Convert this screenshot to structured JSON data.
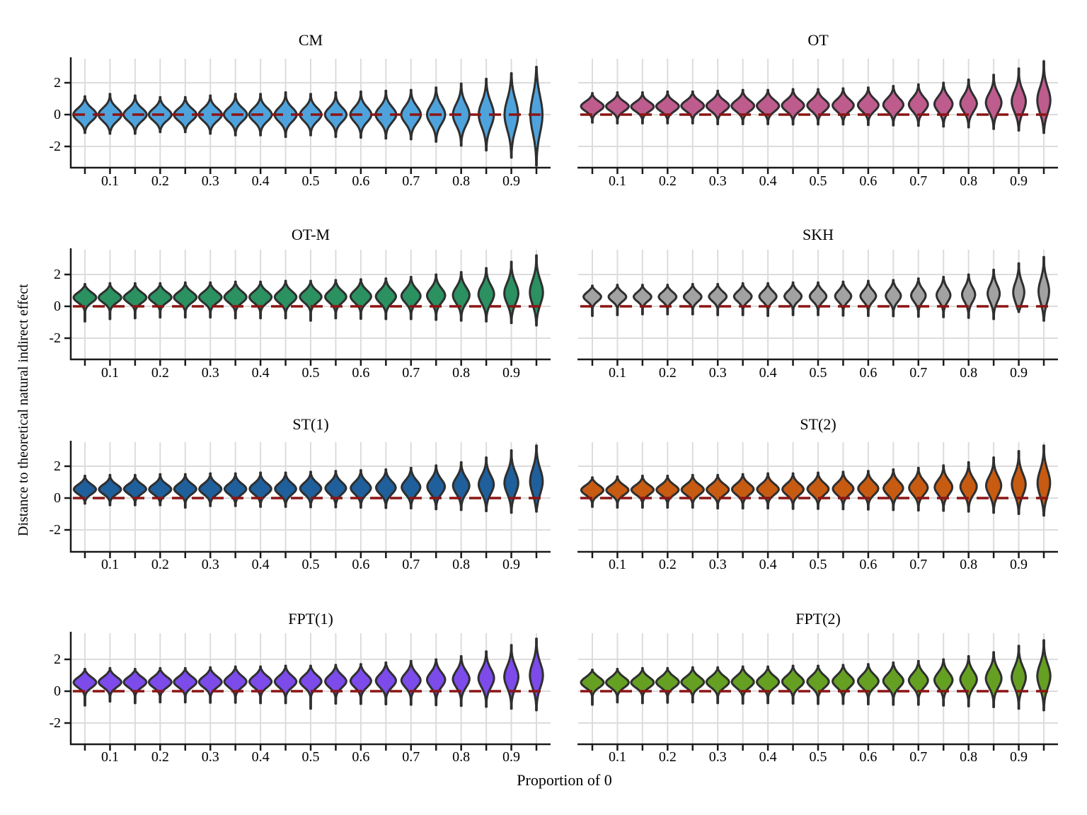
{
  "chart_data": {
    "type": "violin",
    "layout": "4x2 grid of violin-plot panels",
    "xlabel": "Proportion of 0",
    "ylabel": "Distance to theoretical natural indirect effect",
    "proportions": [
      0.05,
      0.1,
      0.15,
      0.2,
      0.25,
      0.3,
      0.35,
      0.4,
      0.45,
      0.5,
      0.55,
      0.6,
      0.65,
      0.7,
      0.75,
      0.8,
      0.85,
      0.9,
      0.95
    ],
    "x_tick_labels": [
      "0.1",
      "0.2",
      "0.3",
      "0.4",
      "0.5",
      "0.6",
      "0.7",
      "0.8",
      "0.9"
    ],
    "y_ticks": [
      2,
      0,
      -2
    ],
    "y_tick_labels": [
      "2",
      "0",
      "-2"
    ],
    "ylim": [
      -3.4,
      3.55
    ],
    "grid": true,
    "zero_line": {
      "y": 0,
      "style": "dashed",
      "color": "#8B1515"
    },
    "outline_color": "#2F2F2F",
    "gridline_color": "#DCDCDC",
    "axis_color": "#1A1A1A",
    "panels": [
      {
        "title": "CM",
        "color": "#4FA3DC",
        "col": 0,
        "row": 0,
        "violins": {
          "centers": [
            0,
            0,
            0,
            0,
            0,
            0,
            0,
            0,
            0,
            0,
            0,
            0,
            0,
            0,
            0,
            0,
            0,
            0,
            0
          ],
          "sds": [
            0.4,
            0.42,
            0.4,
            0.38,
            0.38,
            0.4,
            0.42,
            0.42,
            0.44,
            0.42,
            0.44,
            0.46,
            0.48,
            0.52,
            0.58,
            0.66,
            0.78,
            0.95,
            1.15
          ],
          "lows": [
            -1.15,
            -1.2,
            -1.2,
            -1.1,
            -1.1,
            -1.2,
            -1.3,
            -1.3,
            -1.4,
            -1.3,
            -1.4,
            -1.45,
            -1.5,
            -1.55,
            -1.7,
            -1.95,
            -2.25,
            -2.7,
            -3.2
          ],
          "highs": [
            1.15,
            1.3,
            1.2,
            1.1,
            1.1,
            1.2,
            1.3,
            1.3,
            1.4,
            1.3,
            1.4,
            1.45,
            1.5,
            1.55,
            1.7,
            1.95,
            2.25,
            2.6,
            3.0
          ],
          "widths": [
            0.92,
            0.92,
            0.92,
            0.9,
            0.9,
            0.92,
            0.92,
            0.9,
            0.88,
            0.86,
            0.86,
            0.84,
            0.82,
            0.78,
            0.72,
            0.66,
            0.6,
            0.54,
            0.48
          ]
        }
      },
      {
        "title": "OT",
        "color": "#BE5C8E",
        "col": 1,
        "row": 0,
        "violins": {
          "centers": [
            0.52,
            0.52,
            0.5,
            0.52,
            0.55,
            0.55,
            0.55,
            0.55,
            0.57,
            0.58,
            0.58,
            0.6,
            0.62,
            0.64,
            0.66,
            0.7,
            0.75,
            0.82,
            0.9
          ],
          "sds": [
            0.3,
            0.3,
            0.3,
            0.31,
            0.32,
            0.33,
            0.34,
            0.35,
            0.35,
            0.36,
            0.37,
            0.38,
            0.4,
            0.43,
            0.46,
            0.5,
            0.57,
            0.66,
            0.78
          ],
          "lows": [
            -0.5,
            -0.55,
            -0.55,
            -0.55,
            -0.55,
            -0.6,
            -0.6,
            -0.6,
            -0.62,
            -0.62,
            -0.62,
            -0.65,
            -0.68,
            -0.7,
            -0.75,
            -0.8,
            -0.9,
            -1.0,
            -1.15
          ],
          "highs": [
            1.35,
            1.4,
            1.4,
            1.45,
            1.45,
            1.5,
            1.55,
            1.55,
            1.6,
            1.6,
            1.65,
            1.7,
            1.8,
            1.9,
            2.0,
            2.2,
            2.5,
            2.9,
            3.35
          ],
          "widths": [
            0.9,
            0.9,
            0.9,
            0.9,
            0.9,
            0.9,
            0.9,
            0.88,
            0.88,
            0.86,
            0.84,
            0.82,
            0.8,
            0.76,
            0.72,
            0.66,
            0.62,
            0.56,
            0.52
          ]
        }
      },
      {
        "title": "OT-M",
        "color": "#2B9160",
        "col": 0,
        "row": 1,
        "violins": {
          "centers": [
            0.55,
            0.55,
            0.55,
            0.57,
            0.57,
            0.57,
            0.58,
            0.58,
            0.58,
            0.6,
            0.6,
            0.62,
            0.62,
            0.65,
            0.68,
            0.7,
            0.76,
            0.82,
            0.88
          ],
          "sds": [
            0.32,
            0.32,
            0.32,
            0.32,
            0.33,
            0.34,
            0.35,
            0.35,
            0.36,
            0.36,
            0.37,
            0.38,
            0.4,
            0.42,
            0.45,
            0.5,
            0.56,
            0.65,
            0.75
          ],
          "lows": [
            -0.95,
            -0.8,
            -0.75,
            -0.7,
            -0.7,
            -0.7,
            -0.75,
            -0.75,
            -0.75,
            -0.9,
            -0.75,
            -0.78,
            -0.8,
            -0.8,
            -0.85,
            -0.9,
            -0.95,
            -1.05,
            -1.2
          ],
          "highs": [
            1.4,
            1.45,
            1.45,
            1.45,
            1.5,
            1.5,
            1.55,
            1.55,
            1.6,
            1.6,
            1.65,
            1.7,
            1.75,
            1.85,
            2.0,
            2.15,
            2.4,
            2.8,
            3.2
          ],
          "widths": [
            0.9,
            0.9,
            0.9,
            0.9,
            0.9,
            0.9,
            0.88,
            0.88,
            0.86,
            0.86,
            0.84,
            0.82,
            0.8,
            0.76,
            0.72,
            0.66,
            0.62,
            0.56,
            0.52
          ]
        }
      },
      {
        "title": "SKH",
        "color": "#A2A2A2",
        "col": 1,
        "row": 1,
        "violins": {
          "centers": [
            0.6,
            0.6,
            0.6,
            0.6,
            0.6,
            0.62,
            0.62,
            0.62,
            0.63,
            0.63,
            0.64,
            0.65,
            0.66,
            0.68,
            0.7,
            0.74,
            0.8,
            0.88,
            0.95
          ],
          "sds": [
            0.28,
            0.28,
            0.28,
            0.29,
            0.3,
            0.3,
            0.31,
            0.32,
            0.32,
            0.33,
            0.34,
            0.35,
            0.37,
            0.39,
            0.42,
            0.46,
            0.52,
            0.62,
            0.72
          ],
          "lows": [
            -0.6,
            -0.55,
            -0.5,
            -0.5,
            -0.5,
            -0.55,
            -0.55,
            -0.6,
            -0.55,
            -0.55,
            -0.58,
            -0.6,
            -0.62,
            -0.65,
            -0.68,
            -0.72,
            -0.8,
            -0.35,
            -0.9
          ],
          "highs": [
            1.3,
            1.35,
            1.35,
            1.35,
            1.4,
            1.4,
            1.45,
            1.45,
            1.5,
            1.5,
            1.55,
            1.6,
            1.65,
            1.75,
            1.85,
            2.0,
            2.3,
            2.7,
            3.1
          ],
          "widths": [
            0.7,
            0.7,
            0.7,
            0.7,
            0.7,
            0.7,
            0.7,
            0.68,
            0.68,
            0.66,
            0.64,
            0.62,
            0.6,
            0.58,
            0.55,
            0.52,
            0.48,
            0.44,
            0.42
          ]
        }
      },
      {
        "title": "ST(1)",
        "color": "#1F5F9B",
        "col": 0,
        "row": 2,
        "violins": {
          "centers": [
            0.55,
            0.55,
            0.57,
            0.55,
            0.57,
            0.57,
            0.57,
            0.58,
            0.58,
            0.6,
            0.62,
            0.63,
            0.65,
            0.68,
            0.72,
            0.78,
            0.85,
            0.95,
            1.05
          ],
          "sds": [
            0.3,
            0.3,
            0.3,
            0.31,
            0.32,
            0.33,
            0.33,
            0.34,
            0.35,
            0.36,
            0.37,
            0.38,
            0.4,
            0.43,
            0.46,
            0.5,
            0.57,
            0.66,
            0.78
          ],
          "lows": [
            -0.35,
            -0.45,
            -0.45,
            -0.45,
            -0.6,
            -0.5,
            -0.5,
            -0.55,
            -0.55,
            -0.58,
            -0.58,
            -0.6,
            -0.62,
            -0.65,
            -0.7,
            -0.75,
            -0.82,
            -0.92,
            -0.85
          ],
          "highs": [
            1.4,
            1.45,
            1.45,
            1.5,
            1.5,
            1.55,
            1.55,
            1.6,
            1.6,
            1.65,
            1.7,
            1.75,
            1.8,
            1.9,
            2.05,
            2.25,
            2.55,
            3.0,
            3.3
          ],
          "widths": [
            0.88,
            0.88,
            0.88,
            0.88,
            0.88,
            0.88,
            0.86,
            0.86,
            0.84,
            0.84,
            0.82,
            0.8,
            0.78,
            0.74,
            0.7,
            0.65,
            0.6,
            0.55,
            0.5
          ]
        }
      },
      {
        "title": "ST(2)",
        "color": "#C75B12",
        "col": 1,
        "row": 2,
        "violins": {
          "centers": [
            0.5,
            0.5,
            0.52,
            0.52,
            0.53,
            0.53,
            0.55,
            0.55,
            0.55,
            0.57,
            0.58,
            0.6,
            0.62,
            0.65,
            0.68,
            0.72,
            0.78,
            0.86,
            0.95
          ],
          "sds": [
            0.3,
            0.3,
            0.3,
            0.31,
            0.32,
            0.33,
            0.34,
            0.34,
            0.35,
            0.36,
            0.37,
            0.38,
            0.4,
            0.43,
            0.46,
            0.5,
            0.57,
            0.66,
            0.78
          ],
          "lows": [
            -0.55,
            -0.6,
            -0.6,
            -0.6,
            -0.6,
            -0.65,
            -0.65,
            -0.65,
            -0.68,
            -0.68,
            -0.7,
            -0.72,
            -0.75,
            -0.78,
            -0.8,
            -0.85,
            -0.92,
            -1.0,
            -1.1
          ],
          "highs": [
            1.3,
            1.35,
            1.4,
            1.4,
            1.45,
            1.45,
            1.5,
            1.55,
            1.55,
            1.6,
            1.65,
            1.7,
            1.8,
            1.9,
            2.05,
            2.25,
            2.55,
            2.95,
            3.3
          ],
          "widths": [
            0.88,
            0.88,
            0.88,
            0.88,
            0.88,
            0.88,
            0.86,
            0.86,
            0.84,
            0.84,
            0.82,
            0.8,
            0.78,
            0.74,
            0.7,
            0.65,
            0.6,
            0.55,
            0.5
          ]
        }
      },
      {
        "title": "FPT(1)",
        "color": "#7C4BEA",
        "col": 0,
        "row": 3,
        "violins": {
          "centers": [
            0.55,
            0.57,
            0.57,
            0.57,
            0.58,
            0.58,
            0.6,
            0.6,
            0.6,
            0.62,
            0.62,
            0.64,
            0.66,
            0.68,
            0.72,
            0.76,
            0.82,
            0.9,
            1.0
          ],
          "sds": [
            0.32,
            0.32,
            0.32,
            0.33,
            0.33,
            0.34,
            0.35,
            0.35,
            0.36,
            0.37,
            0.38,
            0.39,
            0.41,
            0.43,
            0.46,
            0.5,
            0.57,
            0.66,
            0.76
          ],
          "lows": [
            -0.9,
            -0.65,
            -0.75,
            -0.7,
            -0.7,
            -0.72,
            -0.72,
            -0.75,
            -0.75,
            -1.1,
            -0.78,
            -0.8,
            -0.82,
            -0.85,
            -0.88,
            -0.92,
            -0.98,
            -1.1,
            -1.2
          ],
          "highs": [
            1.4,
            1.45,
            1.4,
            1.45,
            1.45,
            1.5,
            1.55,
            1.55,
            1.6,
            1.6,
            1.65,
            1.7,
            1.8,
            1.9,
            2.0,
            2.2,
            2.5,
            2.9,
            3.3
          ],
          "widths": [
            0.9,
            0.9,
            0.9,
            0.9,
            0.9,
            0.9,
            0.88,
            0.88,
            0.86,
            0.86,
            0.84,
            0.82,
            0.8,
            0.76,
            0.72,
            0.66,
            0.62,
            0.56,
            0.52
          ]
        }
      },
      {
        "title": "FPT(2)",
        "color": "#66A023",
        "col": 1,
        "row": 3,
        "violins": {
          "centers": [
            0.55,
            0.55,
            0.55,
            0.57,
            0.57,
            0.58,
            0.58,
            0.58,
            0.6,
            0.6,
            0.62,
            0.63,
            0.65,
            0.68,
            0.7,
            0.74,
            0.8,
            0.88,
            0.95
          ],
          "sds": [
            0.32,
            0.32,
            0.32,
            0.33,
            0.33,
            0.34,
            0.35,
            0.35,
            0.36,
            0.37,
            0.38,
            0.39,
            0.41,
            0.43,
            0.46,
            0.5,
            0.56,
            0.64,
            0.74
          ],
          "lows": [
            -0.85,
            -0.7,
            -0.75,
            -0.72,
            -0.7,
            -0.75,
            -0.78,
            -0.75,
            -0.78,
            -0.8,
            -0.8,
            -0.82,
            -0.85,
            -0.85,
            -0.9,
            -0.95,
            -1.0,
            -1.1,
            -1.2
          ],
          "highs": [
            1.35,
            1.4,
            1.45,
            1.45,
            1.5,
            1.5,
            1.55,
            1.55,
            1.6,
            1.6,
            1.65,
            1.7,
            1.8,
            1.9,
            2.0,
            2.2,
            2.45,
            2.85,
            3.2
          ],
          "widths": [
            0.9,
            0.9,
            0.9,
            0.9,
            0.9,
            0.9,
            0.88,
            0.88,
            0.86,
            0.86,
            0.84,
            0.82,
            0.8,
            0.76,
            0.72,
            0.66,
            0.62,
            0.56,
            0.52
          ]
        }
      }
    ]
  }
}
